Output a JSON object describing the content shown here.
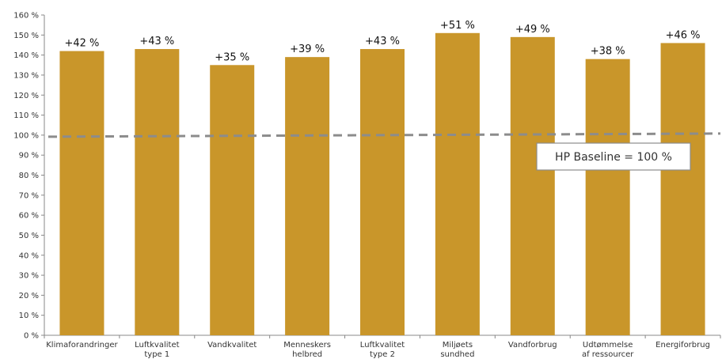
{
  "chart_data": {
    "type": "bar",
    "categories": [
      [
        "Klimaforandringer"
      ],
      [
        "Luftkvalitet",
        "type 1"
      ],
      [
        "Vandkvalitet"
      ],
      [
        "Menneskers",
        "helbred"
      ],
      [
        "Luftkvalitet",
        "type 2"
      ],
      [
        "Miljøets",
        "sundhed"
      ],
      [
        "Vandforbrug"
      ],
      [
        "Udtømmelse",
        "af ressourcer"
      ],
      [
        "Energiforbrug"
      ]
    ],
    "values": [
      142,
      143,
      135,
      139,
      143,
      151,
      149,
      138,
      146
    ],
    "data_labels": [
      "+42 %",
      "+43 %",
      "+35 %",
      "+39 %",
      "+43 %",
      "+51 %",
      "+49 %",
      "+38 %",
      "+46 %"
    ],
    "y_ticks": [
      0,
      10,
      20,
      30,
      40,
      50,
      60,
      70,
      80,
      90,
      100,
      110,
      120,
      130,
      140,
      150,
      160
    ],
    "y_tick_labels": [
      "0 %",
      "10 %",
      "20 %",
      "30 %",
      "40 %",
      "50 %",
      "60 %",
      "70 %",
      "80 %",
      "90 %",
      "100 %",
      "110 %",
      "120 %",
      "130 %",
      "140 %",
      "150 %",
      "160 %"
    ],
    "ylim": [
      0,
      160
    ],
    "reference_line": {
      "value": 100,
      "label": "HP Baseline = 100 %"
    },
    "colors": {
      "bar": "#c9962a",
      "baseline": "#8c8c8c",
      "axis": "#888888"
    },
    "grid": false
  }
}
